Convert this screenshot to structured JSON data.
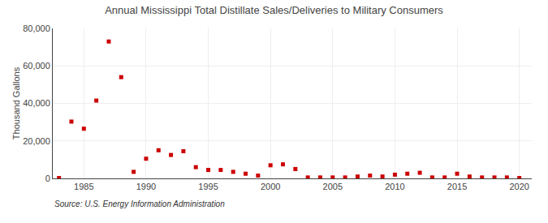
{
  "chart_data": {
    "type": "scatter",
    "title": "Annual Mississippi Total Distillate Sales/Deliveries to Military Consumers",
    "ylabel": "Thousand Gallons",
    "annotations": [
      "Source: U.S. Energy Information Administration"
    ],
    "x": [
      1983,
      1984,
      1985,
      1986,
      1987,
      1988,
      1989,
      1990,
      1991,
      1992,
      1993,
      1994,
      1995,
      1996,
      1997,
      1998,
      1999,
      2000,
      2001,
      2002,
      2003,
      2004,
      2005,
      2006,
      2007,
      2008,
      2009,
      2010,
      2011,
      2012,
      2013,
      2014,
      2015,
      2016,
      2017,
      2018,
      2019,
      2020
    ],
    "values": [
      200,
      30300,
      26500,
      41500,
      73000,
      54000,
      3500,
      10500,
      15000,
      12500,
      14500,
      6000,
      4500,
      4500,
      3500,
      2500,
      1500,
      7000,
      7500,
      5000,
      500,
      500,
      500,
      500,
      1000,
      1500,
      1000,
      2000,
      2500,
      3000,
      500,
      500,
      2500,
      1000,
      500,
      500,
      500,
      200
    ],
    "color": "#cc0000",
    "marker": "square",
    "xlim": [
      1982.5,
      2021
    ],
    "xticks": [
      1985,
      1990,
      1995,
      2000,
      2005,
      2010,
      2015,
      2020
    ],
    "ylim": [
      0,
      80000
    ],
    "yticks": [
      0,
      {
        "value": 20000,
        "label": "20,000"
      },
      {
        "value": 40000,
        "label": "40,000"
      },
      {
        "value": 60000,
        "label": "60,000"
      },
      {
        "value": 80000,
        "label": "80,000"
      }
    ],
    "grid": true
  }
}
